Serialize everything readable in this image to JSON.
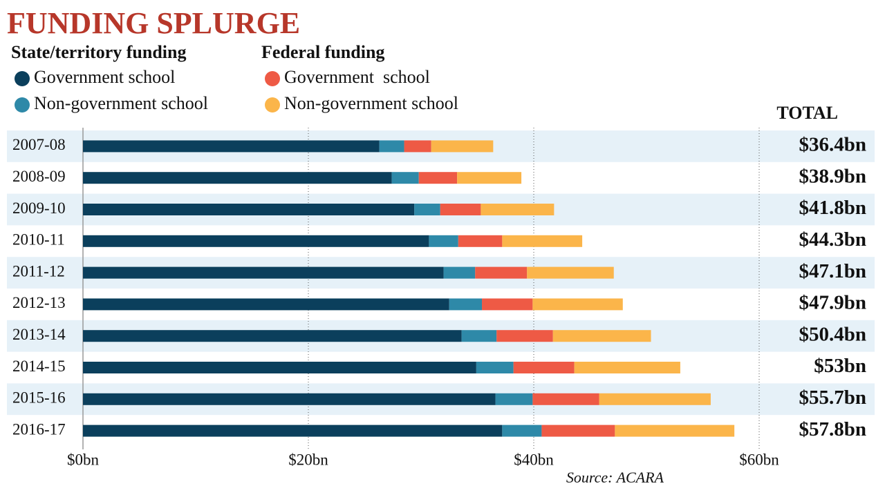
{
  "chart_data": {
    "type": "stacked-bar-horizontal",
    "title": "FUNDING SPLURGE",
    "legend_groups": [
      {
        "title": "State/territory funding"
      },
      {
        "title": "Federal funding"
      }
    ],
    "categories": [
      "2007-08",
      "2008-09",
      "2009-10",
      "2010-11",
      "2011-12",
      "2012-13",
      "2013-14",
      "2014-15",
      "2015-16",
      "2016-17"
    ],
    "series": [
      {
        "name": "Government school",
        "color": "#0b3f5c",
        "values": [
          26.3,
          27.4,
          29.4,
          30.7,
          32.0,
          32.5,
          33.6,
          34.9,
          36.6,
          37.2
        ]
      },
      {
        "name": "Non-government school",
        "color": "#2e89a8",
        "values": [
          2.2,
          2.4,
          2.3,
          2.6,
          2.8,
          2.9,
          3.1,
          3.3,
          3.3,
          3.5
        ]
      },
      {
        "name": "Government  school",
        "color": "#ee5a45",
        "values": [
          2.4,
          3.4,
          3.6,
          3.9,
          4.6,
          4.5,
          5.0,
          5.4,
          5.9,
          6.5
        ]
      },
      {
        "name": "Non-government school",
        "color": "#fbb54a",
        "values": [
          5.5,
          5.7,
          6.5,
          7.1,
          7.7,
          8.0,
          8.7,
          9.4,
          9.9,
          10.6
        ]
      }
    ],
    "totals": {
      "title": "TOTAL",
      "labels": [
        "$36.4bn",
        "$38.9bn",
        "$41.8bn",
        "$44.3bn",
        "$47.1bn",
        "$47.9bn",
        "$50.4bn",
        "$53bn",
        "$55.7bn",
        "$57.8bn"
      ]
    },
    "xlim": [
      0,
      70
    ],
    "xticks": [
      {
        "value": 0,
        "label": "$0bn"
      },
      {
        "value": 20,
        "label": "$20bn"
      },
      {
        "value": 40,
        "label": "$40bn"
      },
      {
        "value": 60,
        "label": "$60bn"
      }
    ],
    "grid": true,
    "source": "Source: ACARA"
  }
}
